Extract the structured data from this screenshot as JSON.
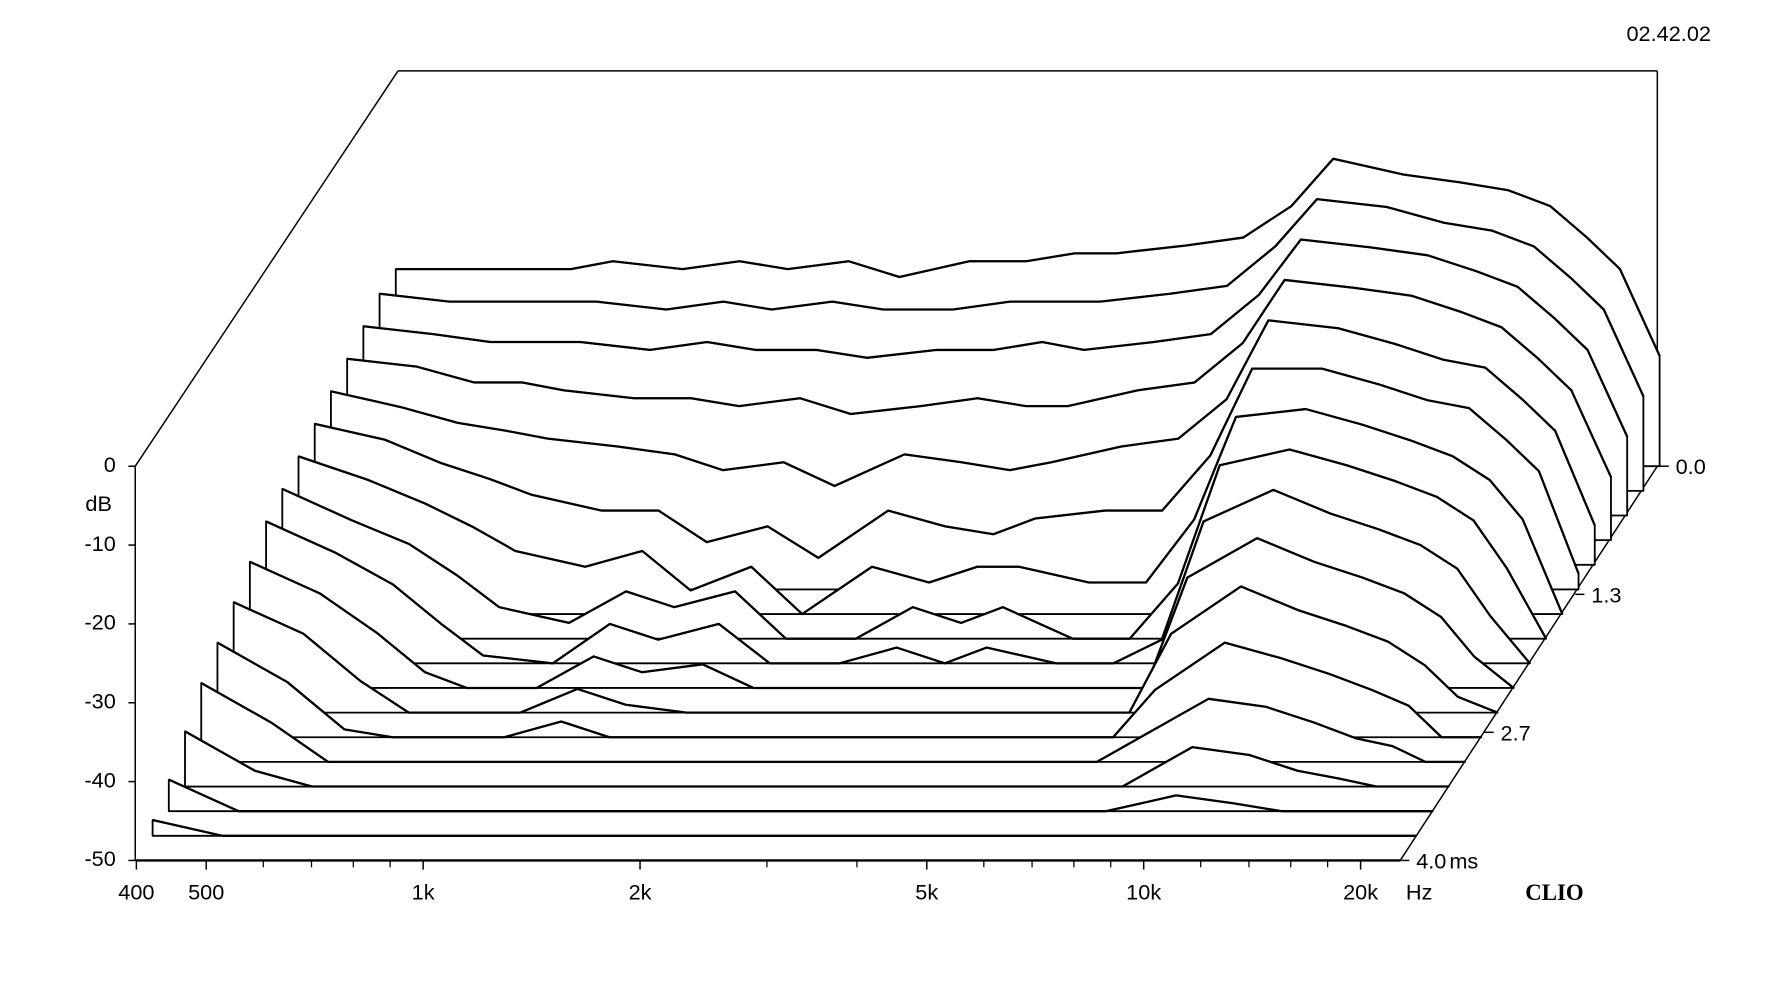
{
  "chart_data": {
    "type": "waterfall",
    "timestamp": "02.42.02",
    "brand": "CLIO",
    "y_label": "dB",
    "x_unit": "Hz",
    "z_unit": "ms",
    "frequencies": [
      400,
      500,
      600,
      700,
      800,
      1000,
      1200,
      1400,
      1700,
      2000,
      2500,
      3000,
      3500,
      4000,
      5000,
      6000,
      7000,
      8000,
      10000,
      12000,
      14000,
      16000,
      18000,
      20000,
      22700
    ],
    "xlim": [
      400,
      22700
    ],
    "xticks": [
      400,
      500,
      {
        "value": 1000,
        "label": "1k"
      },
      {
        "value": 2000,
        "label": "2k"
      },
      {
        "value": 5000,
        "label": "5k"
      },
      {
        "value": 10000,
        "label": "10k"
      },
      {
        "value": 20000,
        "label": "20k"
      }
    ],
    "xminor_ticks": [
      600,
      700,
      800,
      900,
      3000,
      4000,
      6000,
      7000,
      8000,
      9000,
      12000,
      14000,
      16000,
      18000
    ],
    "ylim": [
      -50,
      0
    ],
    "yticks": [
      0,
      -10,
      -20,
      -30,
      -40,
      -50
    ],
    "zlim": [
      0,
      4
    ],
    "zticks": [
      {
        "value": 0,
        "label": "0.0"
      },
      1.3,
      2.7,
      {
        "value": 4,
        "label": "4.0"
      }
    ],
    "slices": [
      {
        "time": 0,
        "values": [
          -25,
          -25,
          -25,
          -25,
          -24,
          -25,
          -24,
          -25,
          -24,
          -26,
          -24,
          -24,
          -23,
          -23,
          -22,
          -21,
          -17,
          -11,
          -13,
          -14,
          -15,
          -17,
          -21,
          -25,
          -36
        ]
      },
      {
        "time": 0.25,
        "values": [
          -25,
          -26,
          -26,
          -26,
          -26,
          -27,
          -26,
          -27,
          -26,
          -27,
          -27,
          -26,
          -26,
          -26,
          -25,
          -24,
          -19,
          -13,
          -14,
          -16,
          -17,
          -19,
          -23,
          -27,
          -38
        ]
      },
      {
        "time": 0.5,
        "values": [
          -26,
          -27,
          -28,
          -28,
          -28,
          -29,
          -28,
          -29,
          -29,
          -30,
          -29,
          -29,
          -28,
          -29,
          -28,
          -27,
          -22,
          -15,
          -16,
          -17,
          -19,
          -21,
          -25,
          -29,
          -40
        ]
      },
      {
        "time": 0.75,
        "values": [
          -27,
          -28,
          -30,
          -30,
          -31,
          -32,
          -32,
          -33,
          -32,
          -34,
          -33,
          -32,
          -33,
          -33,
          -31,
          -30,
          -25,
          -17,
          -18,
          -19,
          -21,
          -23,
          -27,
          -31,
          -42
        ]
      },
      {
        "time": 1,
        "values": [
          -28,
          -30,
          -32,
          -33,
          -34,
          -35,
          -36,
          -38,
          -37,
          -40,
          -36,
          -37,
          -38,
          -37,
          -35,
          -34,
          -29,
          -19,
          -20,
          -22,
          -24,
          -25,
          -29,
          -33,
          -45
        ]
      },
      {
        "time": 1.25,
        "values": [
          -29,
          -31,
          -34,
          -36,
          -38,
          -40,
          -40,
          -44,
          -42,
          -46,
          -40,
          -42,
          -43,
          -41,
          -40,
          -40,
          -33,
          -22,
          -22,
          -24,
          -26,
          -27,
          -31,
          -35,
          -48
        ]
      },
      {
        "time": 1.5,
        "values": [
          -30,
          -33,
          -36,
          -39,
          -42,
          -44,
          -42,
          -47,
          -44,
          -50,
          -44,
          -46,
          -44,
          -44,
          -46,
          -46,
          -38,
          -25,
          -24,
          -26,
          -28,
          -30,
          -33,
          -38,
          -50
        ]
      },
      {
        "time": 1.75,
        "values": [
          -31,
          -35,
          -38,
          -42,
          -46,
          -48,
          -44,
          -46,
          -44,
          -50,
          -50,
          -46,
          -48,
          -46,
          -50,
          -50,
          -43,
          -28,
          -26,
          -28,
          -30,
          -32,
          -35,
          -41,
          -50
        ]
      },
      {
        "time": 2,
        "values": [
          -32,
          -36,
          -40,
          -45,
          -49,
          -50,
          -45,
          -47,
          -45,
          -50,
          -50,
          -48,
          -50,
          -48,
          -50,
          -50,
          -47,
          -32,
          -28,
          -31,
          -33,
          -35,
          -38,
          -44,
          -50
        ]
      },
      {
        "time": 2.25,
        "values": [
          -34,
          -38,
          -43,
          -48,
          -50,
          -50,
          -46,
          -48,
          -47,
          -50,
          -50,
          -50,
          -50,
          -50,
          -50,
          -50,
          -50,
          -36,
          -31,
          -34,
          -36,
          -38,
          -41,
          -46,
          -50
        ]
      },
      {
        "time": 2.5,
        "values": [
          -36,
          -40,
          -46,
          -50,
          -50,
          -50,
          -47,
          -49,
          -50,
          -50,
          -50,
          -50,
          -50,
          -50,
          -50,
          -50,
          -50,
          -40,
          -34,
          -37,
          -39,
          -41,
          -44,
          -48,
          -50
        ]
      },
      {
        "time": 2.75,
        "values": [
          -38,
          -43,
          -49,
          -50,
          -50,
          -50,
          -48,
          -50,
          -50,
          -50,
          -50,
          -50,
          -50,
          -50,
          -50,
          -50,
          -50,
          -44,
          -38,
          -40,
          -42,
          -44,
          -46,
          -50,
          -50
        ]
      },
      {
        "time": 3,
        "values": [
          -40,
          -45,
          -50,
          -50,
          -50,
          -50,
          -50,
          -50,
          -50,
          -50,
          -50,
          -50,
          -50,
          -50,
          -50,
          -50,
          -50,
          -47,
          -42,
          -43,
          -45,
          -47,
          -48,
          -50,
          -50
        ]
      },
      {
        "time": 3.25,
        "values": [
          -43,
          -48,
          -50,
          -50,
          -50,
          -50,
          -50,
          -50,
          -50,
          -50,
          -50,
          -50,
          -50,
          -50,
          -50,
          -50,
          -50,
          -50,
          -45,
          -46,
          -48,
          -49,
          -50,
          -50,
          -50
        ]
      },
      {
        "time": 3.5,
        "values": [
          -46,
          -50,
          -50,
          -50,
          -50,
          -50,
          -50,
          -50,
          -50,
          -50,
          -50,
          -50,
          -50,
          -50,
          -50,
          -50,
          -50,
          -50,
          -48,
          -49,
          -50,
          -50,
          -50,
          -50,
          -50
        ]
      },
      {
        "time": 3.75,
        "values": [
          -48,
          -50,
          -50,
          -50,
          -50,
          -50,
          -50,
          -50,
          -50,
          -50,
          -50,
          -50,
          -50,
          -50,
          -50,
          -50,
          -50,
          -50,
          -50,
          -50,
          -50,
          -50,
          -50,
          -50,
          -50
        ]
      },
      {
        "time": 4,
        "values": [
          -50,
          -50,
          -50,
          -50,
          -50,
          -50,
          -50,
          -50,
          -50,
          -50,
          -50,
          -50,
          -50,
          -50,
          -50,
          -50,
          -50,
          -50,
          -50,
          -50,
          -50,
          -50,
          -50,
          -50,
          -50
        ]
      }
    ]
  }
}
